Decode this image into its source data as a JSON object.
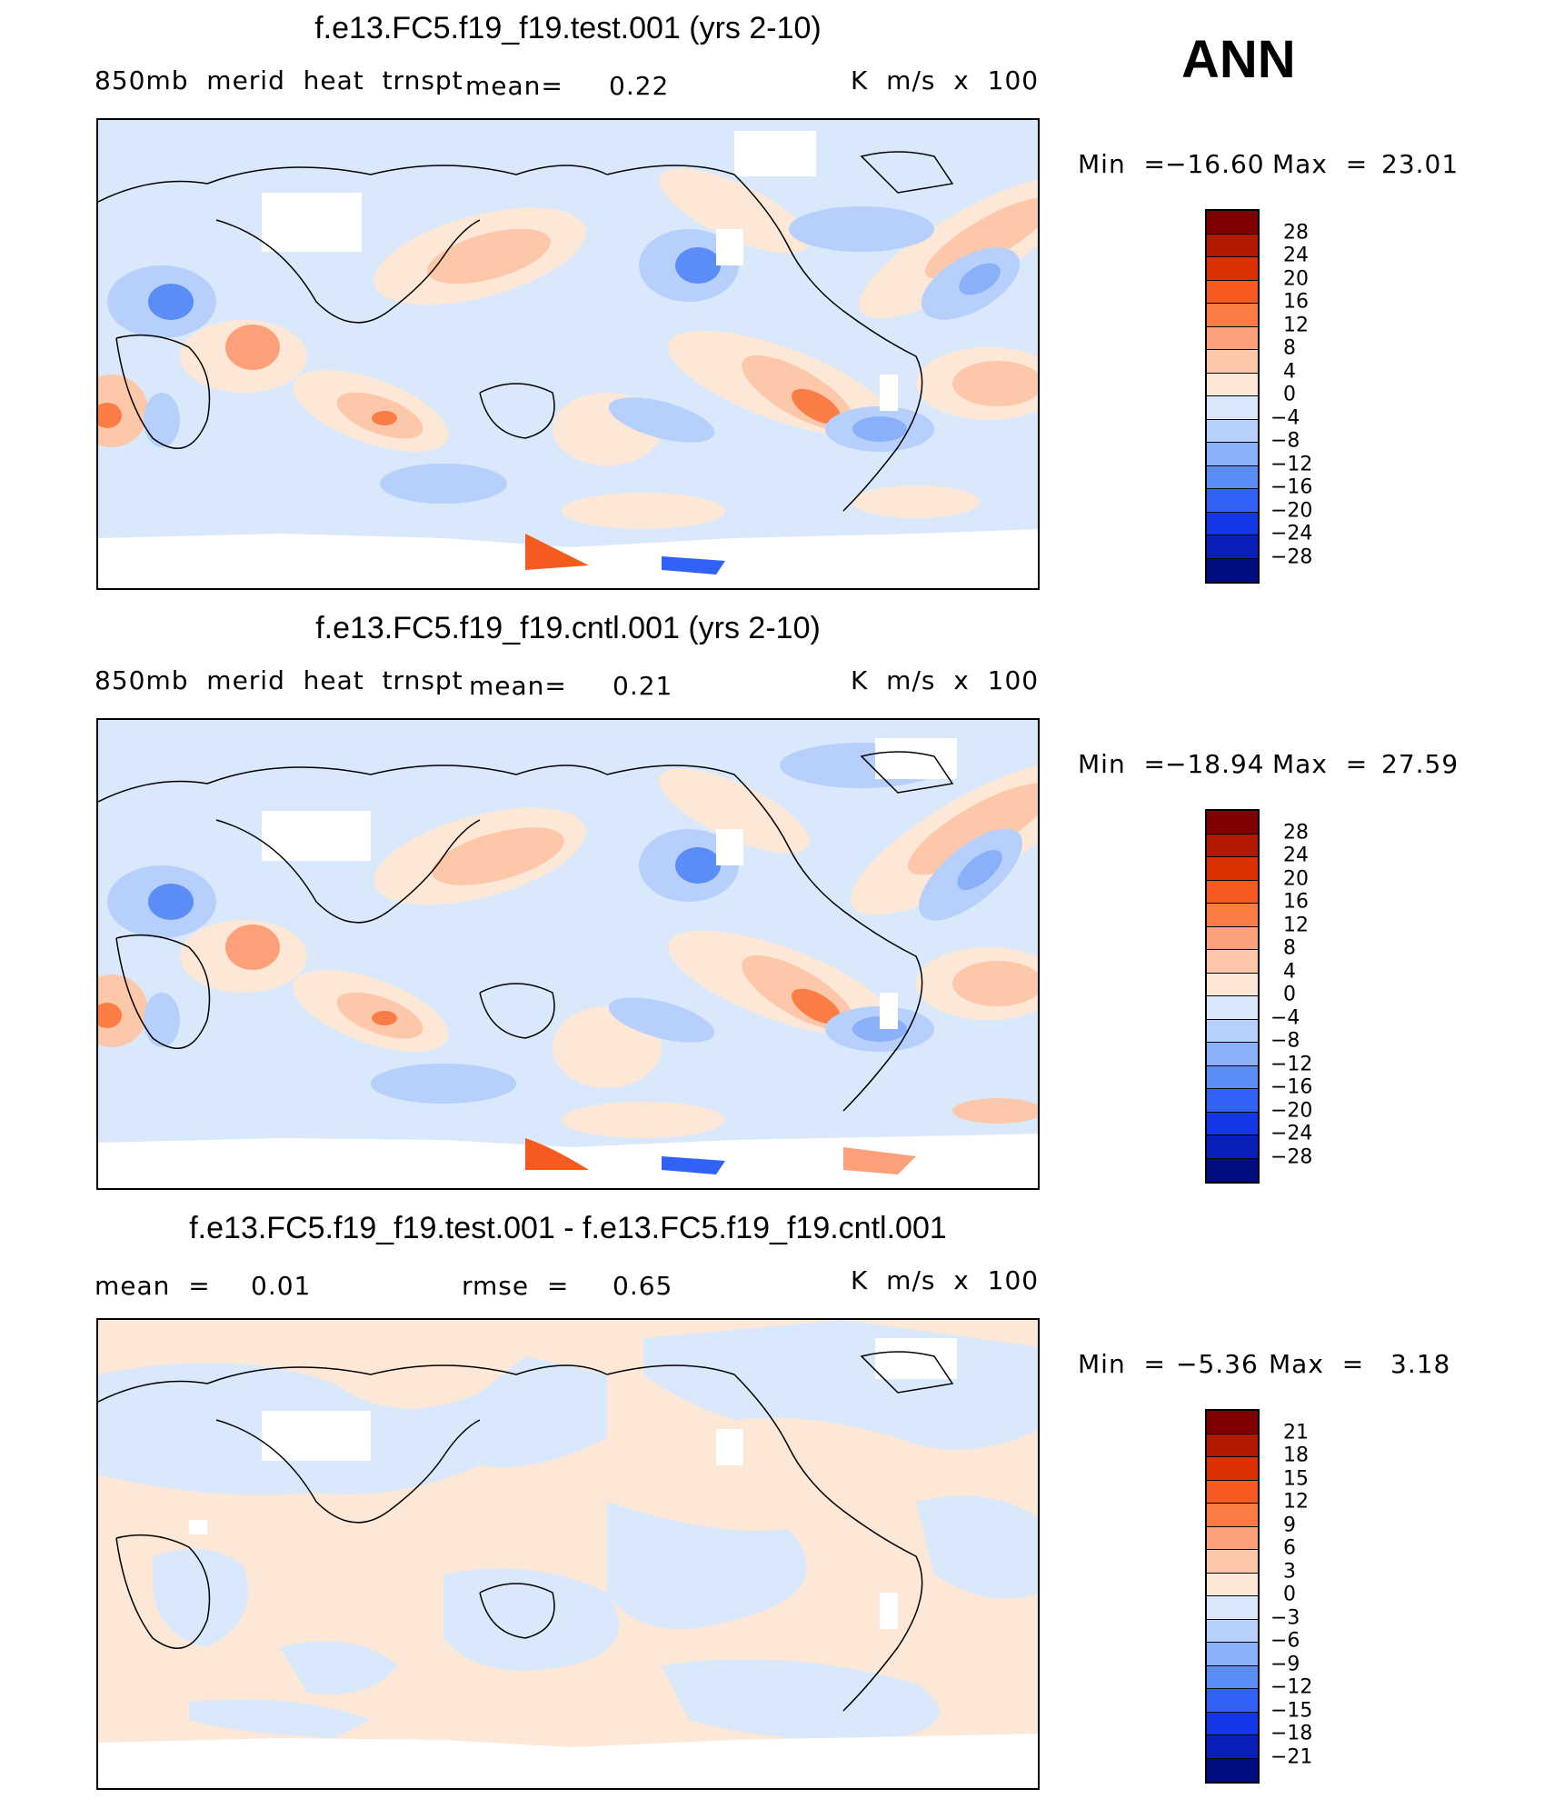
{
  "season": "ANN",
  "panels": [
    {
      "title": "f.e13.FC5.f19_f19.test.001 (yrs 2-10)",
      "left_label": "850mb  merid  heat  trnspt",
      "mean_label": "mean=",
      "mean_value": "0.22",
      "units": "K  m/s  x  100",
      "min_label": "Min  =",
      "min_value": "−16.60",
      "max_label": "Max  =",
      "max_value": "23.01"
    },
    {
      "title": "f.e13.FC5.f19_f19.cntl.001 (yrs 2-10)",
      "left_label": "850mb  merid  heat  trnspt",
      "mean_label": "mean=",
      "mean_value": "0.21",
      "units": "K  m/s  x  100",
      "min_label": "Min  =",
      "min_value": "−18.94",
      "max_label": "Max  =",
      "max_value": "27.59"
    },
    {
      "title": "f.e13.FC5.f19_f19.test.001 - f.e13.FC5.f19_f19.cntl.001",
      "mean_label": "mean  =",
      "mean_value": "0.01",
      "rmse_label": "rmse  =",
      "rmse_value": "0.65",
      "units": "K  m/s  x  100",
      "min_label": "Min  =",
      "min_value": "−5.36",
      "max_label": "Max  =",
      "max_value": "3.18"
    }
  ],
  "colorbars": {
    "main_ticks": [
      "28",
      "24",
      "20",
      "16",
      "12",
      "8",
      "4",
      "0",
      "−4",
      "−8",
      "−12",
      "−16",
      "−20",
      "−24",
      "−28"
    ],
    "diff_ticks": [
      "21",
      "18",
      "15",
      "12",
      "9",
      "6",
      "3",
      "0",
      "−3",
      "−6",
      "−9",
      "−12",
      "−15",
      "−18",
      "−21"
    ],
    "colors": [
      "#7f0000",
      "#b21a00",
      "#dc3200",
      "#f55a1e",
      "#fb7d46",
      "#fca07a",
      "#fdc8aa",
      "#fde7d7",
      "#d8e8fa",
      "#b6d0fb",
      "#8ab0f9",
      "#5b8df6",
      "#2f62f5",
      "#1437e5",
      "#0a1fb8",
      "#000d80"
    ]
  },
  "chart_data": [
    {
      "type": "heatmap",
      "title": "f.e13.FC5.f19_f19.test.001 (yrs 2-10)",
      "variable": "850mb merid heat trnspt",
      "units": "K m/s x 100",
      "mean": 0.22,
      "min": -16.6,
      "max": 23.01,
      "contour_levels": [
        -28,
        -24,
        -20,
        -16,
        -12,
        -8,
        -4,
        0,
        4,
        8,
        12,
        16,
        20,
        24,
        28
      ]
    },
    {
      "type": "heatmap",
      "title": "f.e13.FC5.f19_f19.cntl.001 (yrs 2-10)",
      "variable": "850mb merid heat trnspt",
      "units": "K m/s x 100",
      "mean": 0.21,
      "min": -18.94,
      "max": 27.59,
      "contour_levels": [
        -28,
        -24,
        -20,
        -16,
        -12,
        -8,
        -4,
        0,
        4,
        8,
        12,
        16,
        20,
        24,
        28
      ]
    },
    {
      "type": "heatmap",
      "title": "f.e13.FC5.f19_f19.test.001 - f.e13.FC5.f19_f19.cntl.001",
      "units": "K m/s x 100",
      "mean": 0.01,
      "rmse": 0.65,
      "min": -5.36,
      "max": 3.18,
      "contour_levels": [
        -21,
        -18,
        -15,
        -12,
        -9,
        -6,
        -3,
        0,
        3,
        6,
        9,
        12,
        15,
        18,
        21
      ]
    }
  ]
}
